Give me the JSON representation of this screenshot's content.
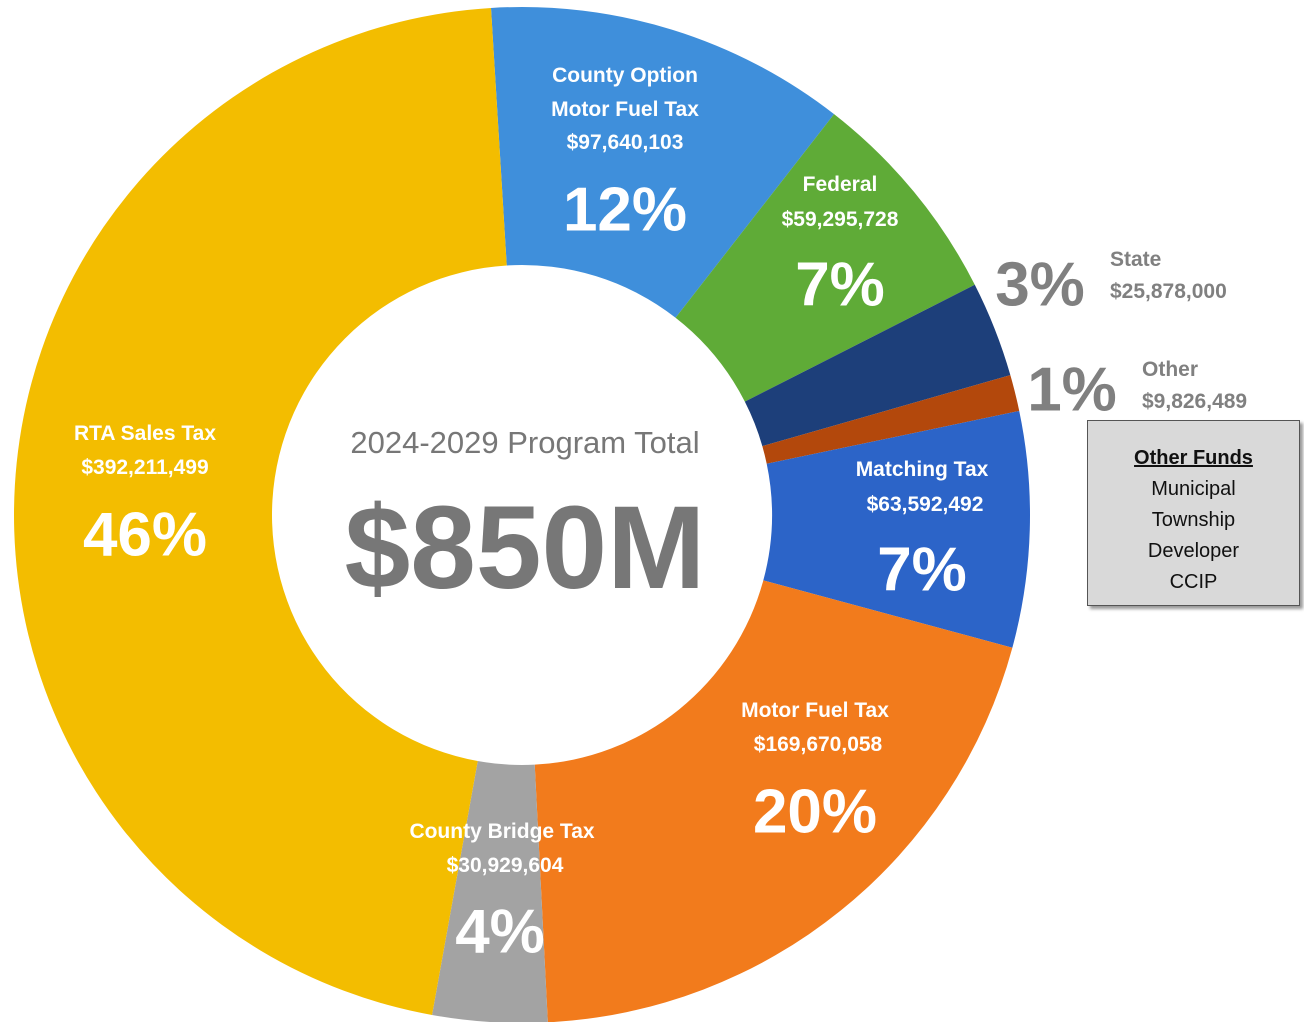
{
  "chart_data": {
    "type": "donut",
    "categories": [
      "County Option Motor Fuel Tax",
      "Federal",
      "State",
      "Other",
      "Matching Tax",
      "Motor Fuel Tax",
      "County Bridge Tax",
      "RTA Sales Tax"
    ],
    "values": [
      97640103,
      59295728,
      25878000,
      9826489,
      63592492,
      169670058,
      30929604,
      392211499
    ],
    "value_labels": [
      "$97,640,103",
      "$59,295,728",
      "$25,878,000",
      "$9,826,489",
      "$63,592,492",
      "$169,670,058",
      "$30,929,604",
      "$392,211,499"
    ],
    "percents": [
      12,
      7,
      3,
      1,
      7,
      20,
      4,
      46
    ],
    "percent_labels": [
      "12%",
      "7%",
      "3%",
      "1%",
      "7%",
      "20%",
      "4%",
      "46%"
    ],
    "colors": [
      "#3f8fdb",
      "#5fab37",
      "#1d3f7a",
      "#b3480c",
      "#2c64c8",
      "#f27b1c",
      "#a3a3a3",
      "#f3bd00"
    ],
    "center_title": "2024-2029 Program Total",
    "total": 850000000,
    "total_label": "$850M"
  },
  "other_funds": {
    "title": "Other Funds",
    "items": [
      "Municipal",
      "Township",
      "Developer",
      "CCIP"
    ]
  }
}
